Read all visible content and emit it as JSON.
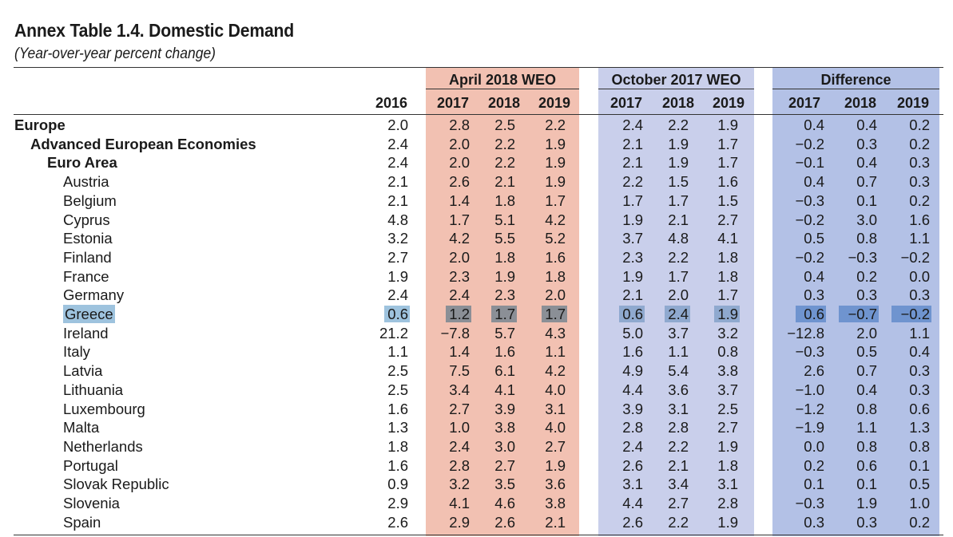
{
  "title": "Annex Table 1.4. Domestic Demand",
  "subtitle": "(Year-over-year percent change)",
  "groups": {
    "april": "April 2018 WEO",
    "october": "October 2017 WEO",
    "difference": "Difference"
  },
  "years": {
    "base": "2016",
    "april": [
      "2017",
      "2018",
      "2019"
    ],
    "october": [
      "2017",
      "2018",
      "2019"
    ],
    "difference": [
      "2017",
      "2018",
      "2019"
    ]
  },
  "highlight_colors": {
    "label": "#9ec3de",
    "april": "#8b8f96",
    "october": "#8fa9cf",
    "difference": "#6f94cf"
  },
  "rows": [
    {
      "name": "Europe",
      "level": 0,
      "v2016": "2.0",
      "april": [
        "2.8",
        "2.5",
        "2.2"
      ],
      "october": [
        "2.4",
        "2.2",
        "1.9"
      ],
      "diff": [
        "0.4",
        "0.4",
        "0.2"
      ]
    },
    {
      "name": "Advanced European Economies",
      "level": 1,
      "v2016": "2.4",
      "april": [
        "2.0",
        "2.2",
        "1.9"
      ],
      "october": [
        "2.1",
        "1.9",
        "1.7"
      ],
      "diff": [
        "−0.2",
        "0.3",
        "0.2"
      ]
    },
    {
      "name": "Euro Area",
      "level": 2,
      "v2016": "2.4",
      "april": [
        "2.0",
        "2.2",
        "1.9"
      ],
      "october": [
        "2.1",
        "1.9",
        "1.7"
      ],
      "diff": [
        "−0.1",
        "0.4",
        "0.3"
      ]
    },
    {
      "name": "Austria",
      "level": 3,
      "v2016": "2.1",
      "april": [
        "2.6",
        "2.1",
        "1.9"
      ],
      "october": [
        "2.2",
        "1.5",
        "1.6"
      ],
      "diff": [
        "0.4",
        "0.7",
        "0.3"
      ]
    },
    {
      "name": "Belgium",
      "level": 3,
      "v2016": "2.1",
      "april": [
        "1.4",
        "1.8",
        "1.7"
      ],
      "october": [
        "1.7",
        "1.7",
        "1.5"
      ],
      "diff": [
        "−0.3",
        "0.1",
        "0.2"
      ]
    },
    {
      "name": "Cyprus",
      "level": 3,
      "v2016": "4.8",
      "april": [
        "1.7",
        "5.1",
        "4.2"
      ],
      "october": [
        "1.9",
        "2.1",
        "2.7"
      ],
      "diff": [
        "−0.2",
        "3.0",
        "1.6"
      ]
    },
    {
      "name": "Estonia",
      "level": 3,
      "v2016": "3.2",
      "april": [
        "4.2",
        "5.5",
        "5.2"
      ],
      "october": [
        "3.7",
        "4.8",
        "4.1"
      ],
      "diff": [
        "0.5",
        "0.8",
        "1.1"
      ]
    },
    {
      "name": "Finland",
      "level": 3,
      "v2016": "2.7",
      "april": [
        "2.0",
        "1.8",
        "1.6"
      ],
      "october": [
        "2.3",
        "2.2",
        "1.8"
      ],
      "diff": [
        "−0.2",
        "−0.3",
        "−0.2"
      ]
    },
    {
      "name": "France",
      "level": 3,
      "v2016": "1.9",
      "april": [
        "2.3",
        "1.9",
        "1.8"
      ],
      "october": [
        "1.9",
        "1.7",
        "1.8"
      ],
      "diff": [
        "0.4",
        "0.2",
        "0.0"
      ]
    },
    {
      "name": "Germany",
      "level": 3,
      "v2016": "2.4",
      "april": [
        "2.4",
        "2.3",
        "2.0"
      ],
      "october": [
        "2.1",
        "2.0",
        "1.7"
      ],
      "diff": [
        "0.3",
        "0.3",
        "0.3"
      ]
    },
    {
      "name": "Greece",
      "level": 3,
      "highlight": true,
      "v2016": "0.6",
      "april": [
        "1.2",
        "1.7",
        "1.7"
      ],
      "october": [
        "0.6",
        "2.4",
        "1.9"
      ],
      "diff": [
        "0.6",
        "−0.7",
        "−0.2"
      ]
    },
    {
      "name": "Ireland",
      "level": 3,
      "v2016": "21.2",
      "april": [
        "−7.8",
        "5.7",
        "4.3"
      ],
      "october": [
        "5.0",
        "3.7",
        "3.2"
      ],
      "diff": [
        "−12.8",
        "2.0",
        "1.1"
      ]
    },
    {
      "name": "Italy",
      "level": 3,
      "v2016": "1.1",
      "april": [
        "1.4",
        "1.6",
        "1.1"
      ],
      "october": [
        "1.6",
        "1.1",
        "0.8"
      ],
      "diff": [
        "−0.3",
        "0.5",
        "0.4"
      ]
    },
    {
      "name": "Latvia",
      "level": 3,
      "v2016": "2.5",
      "april": [
        "7.5",
        "6.1",
        "4.2"
      ],
      "october": [
        "4.9",
        "5.4",
        "3.8"
      ],
      "diff": [
        "2.6",
        "0.7",
        "0.3"
      ]
    },
    {
      "name": "Lithuania",
      "level": 3,
      "v2016": "2.5",
      "april": [
        "3.4",
        "4.1",
        "4.0"
      ],
      "october": [
        "4.4",
        "3.6",
        "3.7"
      ],
      "diff": [
        "−1.0",
        "0.4",
        "0.3"
      ]
    },
    {
      "name": "Luxembourg",
      "level": 3,
      "v2016": "1.6",
      "april": [
        "2.7",
        "3.9",
        "3.1"
      ],
      "october": [
        "3.9",
        "3.1",
        "2.5"
      ],
      "diff": [
        "−1.2",
        "0.8",
        "0.6"
      ]
    },
    {
      "name": "Malta",
      "level": 3,
      "v2016": "1.3",
      "april": [
        "1.0",
        "3.8",
        "4.0"
      ],
      "october": [
        "2.8",
        "2.8",
        "2.7"
      ],
      "diff": [
        "−1.9",
        "1.1",
        "1.3"
      ]
    },
    {
      "name": "Netherlands",
      "level": 3,
      "v2016": "1.8",
      "april": [
        "2.4",
        "3.0",
        "2.7"
      ],
      "october": [
        "2.4",
        "2.2",
        "1.9"
      ],
      "diff": [
        "0.0",
        "0.8",
        "0.8"
      ]
    },
    {
      "name": "Portugal",
      "level": 3,
      "v2016": "1.6",
      "april": [
        "2.8",
        "2.7",
        "1.9"
      ],
      "october": [
        "2.6",
        "2.1",
        "1.8"
      ],
      "diff": [
        "0.2",
        "0.6",
        "0.1"
      ]
    },
    {
      "name": "Slovak Republic",
      "level": 3,
      "v2016": "0.9",
      "april": [
        "3.2",
        "3.5",
        "3.6"
      ],
      "october": [
        "3.1",
        "3.4",
        "3.1"
      ],
      "diff": [
        "0.1",
        "0.1",
        "0.5"
      ]
    },
    {
      "name": "Slovenia",
      "level": 3,
      "v2016": "2.9",
      "april": [
        "4.1",
        "4.6",
        "3.8"
      ],
      "october": [
        "4.4",
        "2.7",
        "2.8"
      ],
      "diff": [
        "−0.3",
        "1.9",
        "1.0"
      ]
    },
    {
      "name": "Spain",
      "level": 3,
      "v2016": "2.6",
      "april": [
        "2.9",
        "2.6",
        "2.1"
      ],
      "october": [
        "2.6",
        "2.2",
        "1.9"
      ],
      "diff": [
        "0.3",
        "0.3",
        "0.2"
      ]
    }
  ]
}
